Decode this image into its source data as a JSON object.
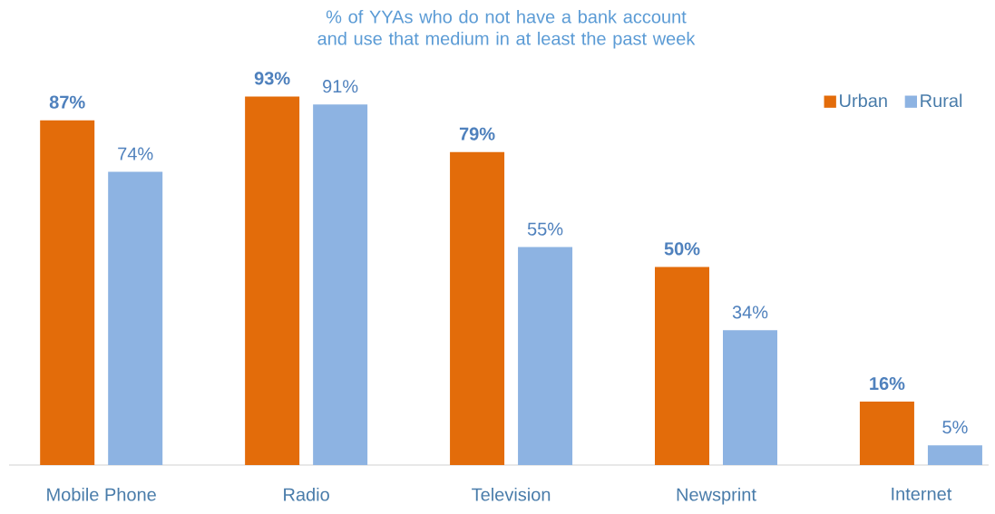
{
  "chart_data": {
    "type": "bar",
    "title": "% of YYAs who do not have a bank account and use that medium in at least the past week",
    "categories": [
      "Mobile Phone",
      "Radio",
      "Television",
      "Newsprint",
      "Internet"
    ],
    "series": [
      {
        "name": "Urban",
        "color": "#e36c0a",
        "values": [
          87,
          93,
          79,
          50,
          16
        ],
        "value_labels": [
          "87%",
          "93%",
          "79%",
          "50%",
          "16%"
        ]
      },
      {
        "name": "Rural",
        "color": "#8db3e2",
        "values": [
          74,
          91,
          55,
          34,
          5
        ],
        "value_labels": [
          "74%",
          "91%",
          "55%",
          "34%",
          "5%"
        ]
      }
    ],
    "legend": "top right"
  }
}
